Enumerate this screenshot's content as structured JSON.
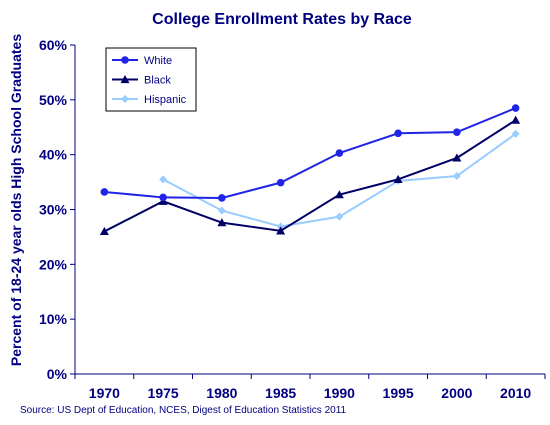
{
  "chart_data": {
    "type": "line",
    "title": "College Enrollment Rates by Race",
    "ylabel": "Percent of 18-24 year olds High School Graduates",
    "xlabel": "",
    "categories": [
      "1970",
      "1975",
      "1980",
      "1985",
      "1990",
      "1995",
      "2000",
      "2010"
    ],
    "ylim": [
      0,
      60
    ],
    "yticks": [
      "0%",
      "10%",
      "20%",
      "30%",
      "40%",
      "50%",
      "60%"
    ],
    "grid": false,
    "legend_position": "top-left",
    "series": [
      {
        "name": "White",
        "values": [
          33.2,
          32.2,
          32.1,
          34.9,
          40.3,
          43.9,
          44.1,
          48.5
        ],
        "color": "#1f24e6",
        "marker": "circle"
      },
      {
        "name": "Black",
        "values": [
          26.0,
          31.5,
          27.6,
          26.1,
          32.7,
          35.5,
          39.4,
          46.3
        ],
        "color": "#000066",
        "marker": "triangle"
      },
      {
        "name": "Hispanic",
        "values": [
          null,
          35.5,
          29.8,
          26.9,
          28.7,
          35.2,
          36.1,
          43.8
        ],
        "color": "#99ccff",
        "marker": "diamond"
      }
    ],
    "source": "Source: US Dept of Education, NCES, Digest of Education Statistics 2011"
  },
  "colors": {
    "title": "#000080",
    "axis_text": "#000080",
    "axis_line": "#000080"
  }
}
